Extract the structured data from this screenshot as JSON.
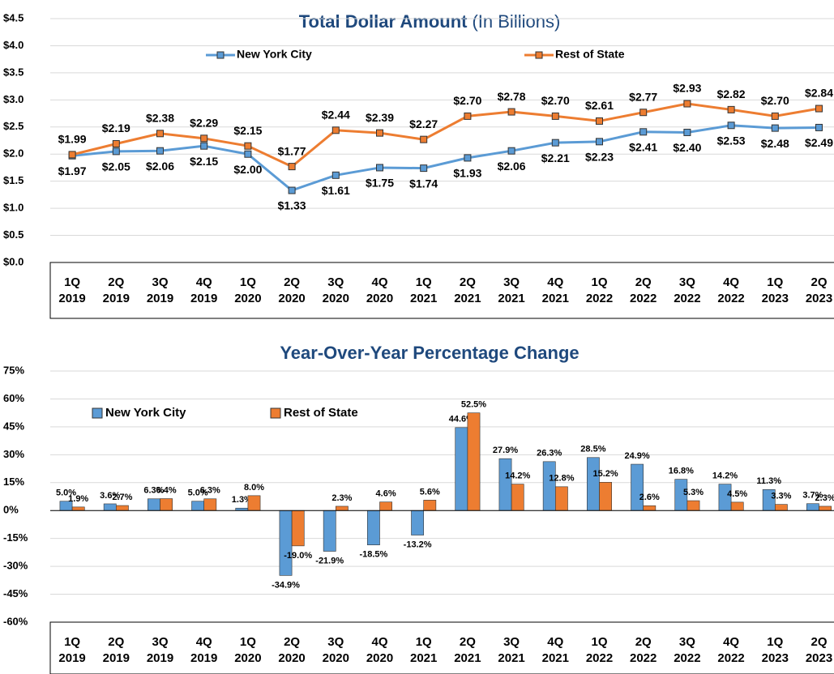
{
  "chart_data": [
    {
      "type": "line",
      "title": "Total Dollar Amount",
      "title_note": "(In Billions)",
      "categories": [
        [
          "1Q",
          "2019"
        ],
        [
          "2Q",
          "2019"
        ],
        [
          "3Q",
          "2019"
        ],
        [
          "4Q",
          "2019"
        ],
        [
          "1Q",
          "2020"
        ],
        [
          "2Q",
          "2020"
        ],
        [
          "3Q",
          "2020"
        ],
        [
          "4Q",
          "2020"
        ],
        [
          "1Q",
          "2021"
        ],
        [
          "2Q",
          "2021"
        ],
        [
          "3Q",
          "2021"
        ],
        [
          "4Q",
          "2021"
        ],
        [
          "1Q",
          "2022"
        ],
        [
          "2Q",
          "2022"
        ],
        [
          "3Q",
          "2022"
        ],
        [
          "4Q",
          "2022"
        ],
        [
          "1Q",
          "2023"
        ],
        [
          "2Q",
          "2023"
        ]
      ],
      "series": [
        {
          "name": "New York City",
          "color": "#5b9bd5",
          "values": [
            1.97,
            2.05,
            2.06,
            2.15,
            2.0,
            1.33,
            1.61,
            1.75,
            1.74,
            1.93,
            2.06,
            2.21,
            2.23,
            2.41,
            2.4,
            2.53,
            2.48,
            2.49
          ],
          "value_labels": [
            "$1.97",
            "$2.05",
            "$2.06",
            "$2.15",
            "$2.00",
            "$1.33",
            "$1.61",
            "$1.75",
            "$1.74",
            "$1.93",
            "$2.06",
            "$2.21",
            "$2.23",
            "$2.41",
            "$2.40",
            "$2.53",
            "$2.48",
            "$2.49"
          ]
        },
        {
          "name": "Rest of State",
          "color": "#ed7d31",
          "values": [
            1.99,
            2.19,
            2.38,
            2.29,
            2.15,
            1.77,
            2.44,
            2.39,
            2.27,
            2.7,
            2.78,
            2.7,
            2.61,
            2.77,
            2.93,
            2.82,
            2.7,
            2.84
          ],
          "value_labels": [
            "$1.99",
            "$2.19",
            "$2.38",
            "$2.29",
            "$2.15",
            "$1.77",
            "$2.44",
            "$2.39",
            "$2.27",
            "$2.70",
            "$2.78",
            "$2.70",
            "$2.61",
            "$2.77",
            "$2.93",
            "$2.82",
            "$2.70",
            "$2.84"
          ]
        }
      ],
      "ylim": [
        0,
        4.5
      ],
      "yticks": [
        {
          "value": 0,
          "label": "$0.0"
        },
        {
          "value": 0.5,
          "label": "$0.5"
        },
        {
          "value": 1,
          "label": "$1.0"
        },
        {
          "value": 1.5,
          "label": "$1.5"
        },
        {
          "value": 2,
          "label": "$2.0"
        },
        {
          "value": 2.5,
          "label": "$2.5"
        },
        {
          "value": 3,
          "label": "$3.0"
        },
        {
          "value": 3.5,
          "label": "$3.5"
        },
        {
          "value": 4,
          "label": "$4.0"
        },
        {
          "value": 4.5,
          "label": "$4.5"
        }
      ],
      "grid": true,
      "legend": "top"
    },
    {
      "type": "bar",
      "title": "Year-Over-Year Percentage Change",
      "categories": [
        [
          "1Q",
          "2019"
        ],
        [
          "2Q",
          "2019"
        ],
        [
          "3Q",
          "2019"
        ],
        [
          "4Q",
          "2019"
        ],
        [
          "1Q",
          "2020"
        ],
        [
          "2Q",
          "2020"
        ],
        [
          "3Q",
          "2020"
        ],
        [
          "4Q",
          "2020"
        ],
        [
          "1Q",
          "2021"
        ],
        [
          "2Q",
          "2021"
        ],
        [
          "3Q",
          "2021"
        ],
        [
          "4Q",
          "2021"
        ],
        [
          "1Q",
          "2022"
        ],
        [
          "2Q",
          "2022"
        ],
        [
          "3Q",
          "2022"
        ],
        [
          "4Q",
          "2022"
        ],
        [
          "1Q",
          "2023"
        ],
        [
          "2Q",
          "2023"
        ]
      ],
      "series": [
        {
          "name": "New York City",
          "color": "#5b9bd5",
          "values": [
            5.0,
            3.6,
            6.3,
            5.0,
            1.3,
            -34.9,
            -21.9,
            -18.5,
            -13.2,
            44.6,
            27.9,
            26.3,
            28.5,
            24.9,
            16.8,
            14.2,
            11.3,
            3.7
          ],
          "value_labels": [
            "5.0%",
            "3.6%",
            "6.3%",
            "5.0%",
            "1.3%",
            "-34.9%",
            "-21.9%",
            "-18.5%",
            "-13.2%",
            "44.6%",
            "27.9%",
            "26.3%",
            "28.5%",
            "24.9%",
            "16.8%",
            "14.2%",
            "11.3%",
            "3.7%"
          ]
        },
        {
          "name": "Rest of State",
          "color": "#ed7d31",
          "values": [
            1.9,
            2.7,
            6.4,
            6.3,
            8.0,
            -19.0,
            2.3,
            4.6,
            5.6,
            52.5,
            14.2,
            12.8,
            15.2,
            2.6,
            5.3,
            4.5,
            3.3,
            2.3
          ],
          "value_labels": [
            "1.9%",
            "2.7%",
            "6.4%",
            "6.3%",
            "8.0%",
            "-19.0%",
            "2.3%",
            "4.6%",
            "5.6%",
            "52.5%",
            "14.2%",
            "12.8%",
            "15.2%",
            "2.6%",
            "5.3%",
            "4.5%",
            "3.3%",
            "2.3%"
          ]
        }
      ],
      "ylim": [
        -60,
        75
      ],
      "yticks": [
        {
          "value": -60,
          "label": "-60%"
        },
        {
          "value": -45,
          "label": "-45%"
        },
        {
          "value": -30,
          "label": "-30%"
        },
        {
          "value": -15,
          "label": "-15%"
        },
        {
          "value": 0,
          "label": "0%"
        },
        {
          "value": 15,
          "label": "15%"
        },
        {
          "value": 30,
          "label": "30%"
        },
        {
          "value": 45,
          "label": "45%"
        },
        {
          "value": 60,
          "label": "60%"
        },
        {
          "value": 75,
          "label": "75%"
        }
      ],
      "grid": true,
      "legend": "top-left"
    }
  ]
}
